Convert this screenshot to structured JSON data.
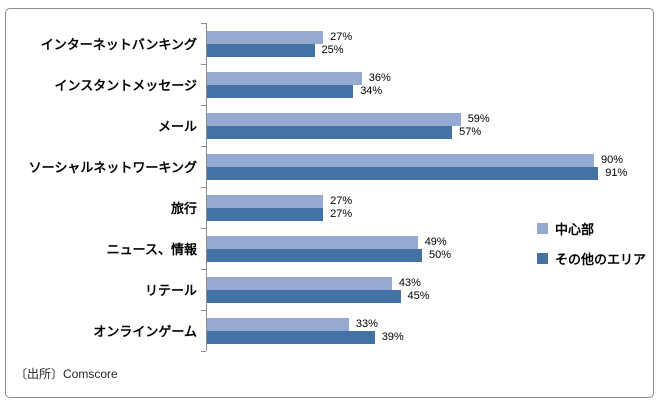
{
  "figure": {
    "background": "#ffffff",
    "border_color": "#8c8c8c",
    "axis_color": "#8c8c8c"
  },
  "source": {
    "label": "〔出所〕Comscore"
  },
  "chart_data": {
    "type": "bar",
    "orientation": "horizontal",
    "title": "",
    "xlabel": "",
    "ylabel": "",
    "xlim": [
      0,
      100
    ],
    "grid": false,
    "legend_position": "right",
    "value_suffix": "%",
    "categories": [
      "インターネットバンキング",
      "インスタントメッセージ",
      "メール",
      "ソーシャルネットワーキング",
      "旅行",
      "ニュース、情報",
      "リテール",
      "オンラインゲーム"
    ],
    "series": [
      {
        "name": "中心部",
        "color": "#95a9d1",
        "values": [
          27,
          36,
          59,
          90,
          27,
          49,
          43,
          33
        ]
      },
      {
        "name": "その他のエリア",
        "color": "#4472a4",
        "values": [
          25,
          34,
          57,
          91,
          27,
          50,
          45,
          39
        ]
      }
    ]
  }
}
